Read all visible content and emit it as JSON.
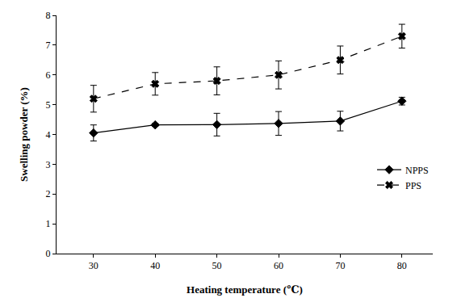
{
  "chart_data": {
    "type": "line",
    "x_label": "Heating temperature (℃)",
    "y_label": "Swelling powder (%)",
    "x": [
      30,
      40,
      50,
      60,
      70,
      80
    ],
    "series": [
      {
        "name": "NPPS",
        "color": "#000000",
        "marker": "diamond",
        "line_style": "solid",
        "values": [
          4.05,
          4.32,
          4.33,
          4.37,
          4.45,
          5.12
        ],
        "errors": [
          0.27,
          0.05,
          0.38,
          0.4,
          0.33,
          0.13
        ]
      },
      {
        "name": "PPS",
        "color": "#000000",
        "marker": "x",
        "line_style": "dash",
        "values": [
          5.2,
          5.7,
          5.8,
          6.0,
          6.5,
          7.3
        ],
        "errors": [
          0.45,
          0.38,
          0.47,
          0.47,
          0.47,
          0.4
        ]
      }
    ],
    "xlim": [
      24,
      85
    ],
    "xticks": [
      30,
      40,
      50,
      60,
      70,
      80
    ],
    "ylim": [
      0,
      8
    ],
    "yticks": [
      0,
      1,
      2,
      3,
      4,
      5,
      6,
      7,
      8
    ],
    "grid": false,
    "legend": "right"
  }
}
